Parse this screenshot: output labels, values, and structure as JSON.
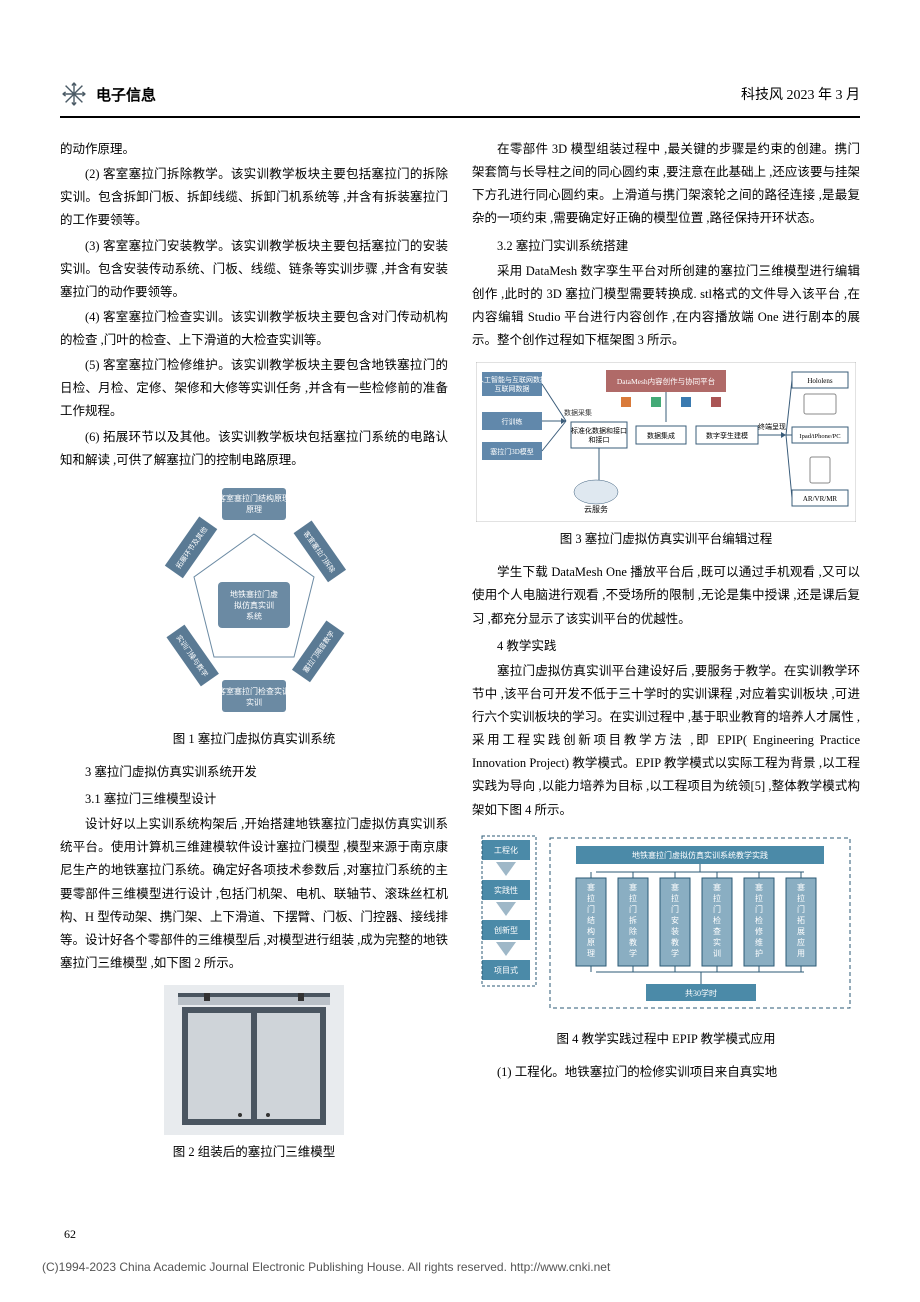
{
  "header": {
    "category": "电子信息",
    "journal_date": "科技风 2023 年 3 月"
  },
  "left_column": {
    "p0": "的动作原理。",
    "p2": "(2) 客室塞拉门拆除教学。该实训教学板块主要包括塞拉门的拆除实训。包含拆卸门板、拆卸线缆、拆卸门机系统等 ,并含有拆装塞拉门的工作要领等。",
    "p3": "(3) 客室塞拉门安装教学。该实训教学板块主要包括塞拉门的安装实训。包含安装传动系统、门板、线缆、链条等实训步骤 ,并含有安装塞拉门的动作要领等。",
    "p4": "(4) 客室塞拉门检查实训。该实训教学板块主要包含对门传动机构的检查 ,门叶的检查、上下滑道的大检查实训等。",
    "p5": "(5) 客室塞拉门检修维护。该实训教学板块主要包含地铁塞拉门的日检、月检、定修、架修和大修等实训任务 ,并含有一些检修前的准备工作规程。",
    "p6": "(6) 拓展环节以及其他。该实训教学板块包括塞拉门系统的电路认知和解读 ,可供了解塞拉门的控制电路原理。",
    "fig1": {
      "caption": "图 1 塞拉门虚拟仿真实训系统",
      "center": "地铁塞拉门虚拟仿真实训系统",
      "top": "客室塞拉门结构原理",
      "bottom": "客室塞拉门检查实训",
      "e1": "拓展环节及其他",
      "e2": "客室塞拉门拆除",
      "e3": "实训门操与教学",
      "e4": "塞拉门隔音教学",
      "center_fill": "#6b8aa3",
      "edge_fill": "#5a7a94",
      "text_color": "#ffffff"
    },
    "s3": "3 塞拉门虚拟仿真实训系统开发",
    "s31": "3.1 塞拉门三维模型设计",
    "p31a": "设计好以上实训系统构架后 ,开始搭建地铁塞拉门虚拟仿真实训系统平台。使用计算机三维建模软件设计塞拉门模型 ,模型来源于南京康尼生产的地铁塞拉门系统。确定好各项技术参数后 ,对塞拉门系统的主要零部件三维模型进行设计 ,包括门机架、电机、联轴节、滚珠丝杠机构、H 型传动架、携门架、上下滑道、下摆臂、门板、门控器、接线排等。设计好各个零部件的三维模型后 ,对模型进行组装 ,成为完整的地铁塞拉门三维模型 ,如下图 2 所示。",
    "fig2": {
      "caption": "图 2 组装后的塞拉门三维模型",
      "frame_color": "#4a5560",
      "panel_color": "#cfd4d9",
      "bg": "#e8ebee"
    }
  },
  "right_column": {
    "p_r1": "在零部件 3D 模型组装过程中 ,最关键的步骤是约束的创建。携门架套筒与长导柱之间的同心圆约束 ,要注意在此基础上 ,还应该要与挂架下方孔进行同心圆约束。上滑道与携门架滚轮之间的路径连接 ,是最复杂的一项约束 ,需要确定好正确的模型位置 ,路径保持开环状态。",
    "s32": "3.2 塞拉门实训系统搭建",
    "p32a": "采用 DataMesh 数字孪生平台对所创建的塞拉门三维模型进行编辑创作 ,此时的 3D 塞拉门模型需要转换成. stl格式的文件导入该平台 ,在内容编辑 Studio 平台进行内容创作 ,在内容播放端 One 进行剧本的展示。整个创作过程如下框架图 3 所示。",
    "fig3": {
      "caption": "图 3 塞拉门虚拟仿真实训平台编辑过程",
      "n1": "人工智能与互联网数据",
      "n2": "行训练",
      "n3": "塞拉门3D模型",
      "arrow_label": "数据采集",
      "n4": "标准化数据和接口",
      "n5": "数据集成",
      "n6": "数字孪生建模",
      "center_box": "DataMesh内容创作与协同平台",
      "n7": "云服务",
      "arrow_label2": "终端呈现",
      "out1": "Hololens",
      "out2": "Ipad/iPhone/PC",
      "out3": "AR/VR/MR",
      "box_fill": "#6188ab",
      "box2_fill": "#b06a68",
      "text_color": "#ffffff",
      "line_color": "#3a5c7a"
    },
    "p32b": "学生下载 DataMesh One 播放平台后 ,既可以通过手机观看 ,又可以使用个人电脑进行观看 ,不受场所的限制 ,无论是集中授课 ,还是课后复习 ,都充分显示了该实训平台的优越性。",
    "s4": "4 教学实践",
    "p4a": "塞拉门虚拟仿真实训平台建设好后 ,要服务于教学。在实训教学环节中 ,该平台可开发不低于三十学时的实训课程 ,对应着实训板块 ,可进行六个实训板块的学习。在实训过程中 ,基于职业教育的培养人才属性 ,采用工程实践创新项目教学方法 ,即 EPIP( Engineering Practice Innovation Project) 教学模式。EPIP 教学模式以实际工程为背景 ,以工程实践为导向 ,以能力培养为目标 ,以工程项目为统领[5] ,整体教学模式构架如下图 4 所示。",
    "fig4": {
      "caption": "图 4 教学实践过程中 EPIP 教学模式应用",
      "left_labels": [
        "工程化",
        "实践性",
        "创新型",
        "项目式"
      ],
      "top_box": "地铁塞拉门虚拟仿真实训系统教学实践",
      "cols": [
        "塞拉门结构原理",
        "塞拉门拆除教学",
        "塞拉门安装教学",
        "塞拉门检查实训",
        "塞拉门检修维护",
        "塞拉门拓展应用"
      ],
      "bottom_box": "共30学时",
      "left_fill": "#4b8aa8",
      "box_fill": "#4b8aa8",
      "col_fill": "#8aaec2",
      "border": "#2b5a75"
    },
    "p4b": "(1) 工程化。地铁塞拉门的检修实训项目来自真实地"
  },
  "page_number": "62",
  "footer": "(C)1994-2023 China Academic Journal Electronic Publishing House. All rights reserved.    http://www.cnki.net"
}
